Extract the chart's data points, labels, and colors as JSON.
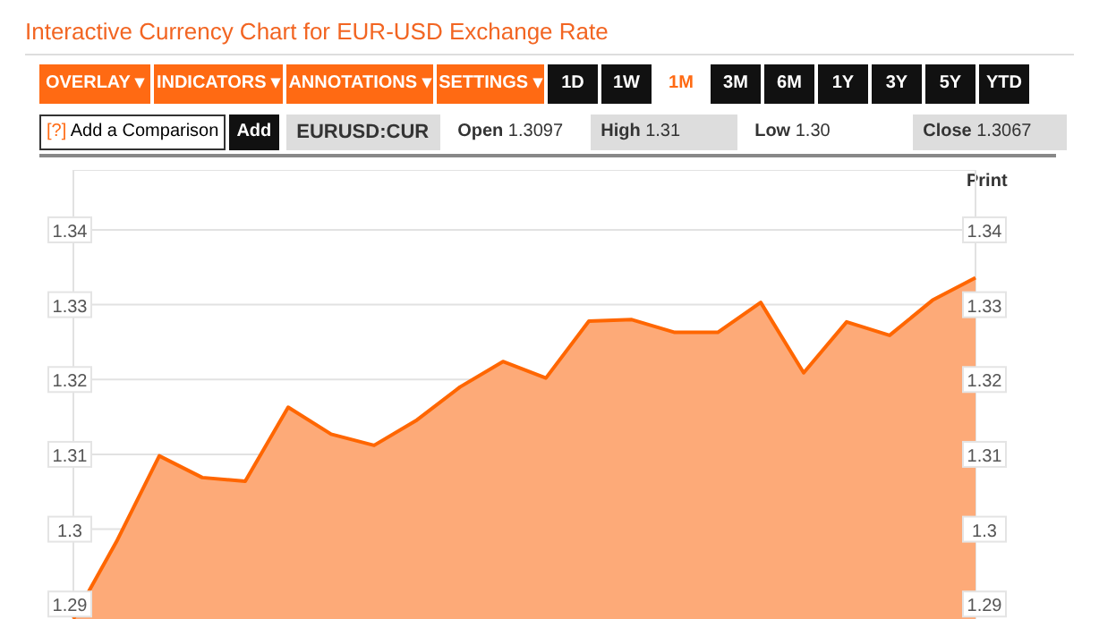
{
  "chart_data": {
    "type": "area",
    "title": "Interactive Currency Chart for EUR-USD Exchange Rate",
    "annotations": [
      "OVERLAY ▾",
      "INDICATORS ▾",
      "ANNOTATIONS ▾",
      "SETTINGS ▾",
      "1D",
      "1W",
      "1M",
      "3M",
      "6M",
      "1Y",
      "3Y",
      "5Y",
      "YTD",
      "[?]",
      "Add a Comparison",
      "Add",
      "EURUSD:CUR",
      "Open 1.3097",
      "High 1.31",
      "Low 1.30",
      "Close 1.3067",
      "Print"
    ],
    "categories": [
      null,
      null,
      null,
      null,
      null,
      null,
      null,
      null,
      null,
      null,
      null,
      null,
      null,
      null,
      null,
      null,
      null,
      null,
      null,
      null,
      null,
      null
    ],
    "series": [
      {
        "color": "#ff6600",
        "values": [
          1.288,
          1.2983,
          1.3098,
          1.3069,
          1.3064,
          1.3163,
          1.3127,
          1.3112,
          1.3146,
          1.319,
          1.3224,
          1.3202,
          1.3278,
          1.328,
          1.3263,
          1.3263,
          1.3303,
          1.3209,
          1.3277,
          1.3259,
          1.3306,
          1.3336
        ]
      }
    ],
    "ylim": [
      1.288,
      1.348
    ],
    "yticks": [
      1.29,
      1.3,
      1.31,
      1.32,
      1.33,
      1.34
    ],
    "y2lim": [
      1.288,
      1.348
    ],
    "y2ticks": [
      1.29,
      1.3,
      1.31,
      1.32,
      1.33,
      1.34
    ],
    "grid": true
  }
}
